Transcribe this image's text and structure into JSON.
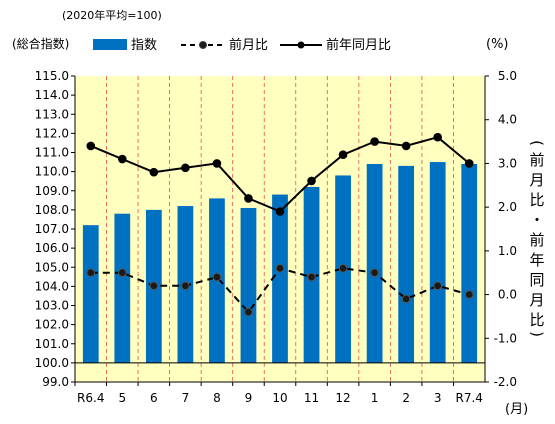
{
  "chart_data": {
    "type": "bar",
    "note": "(2020年平均=100)",
    "ylabel_left": "(総合指数)",
    "ylabel_right_unit": "(%)",
    "ylabel_right_vertical": "前月比・前年同月比",
    "xlabel_unit": "(月)",
    "categories": [
      "R6.4",
      "5",
      "6",
      "7",
      "8",
      "9",
      "10",
      "11",
      "12",
      "1",
      "2",
      "3",
      "R7.4"
    ],
    "left_axis": {
      "ylim": [
        99.0,
        115.0
      ],
      "ticks": [
        "99.0",
        "100.0",
        "101.0",
        "102.0",
        "103.0",
        "104.0",
        "105.0",
        "106.0",
        "107.0",
        "108.0",
        "109.0",
        "110.0",
        "111.0",
        "112.0",
        "113.0",
        "114.0",
        "115.0"
      ]
    },
    "right_axis": {
      "ylim": [
        -2.0,
        5.0
      ],
      "ticks": [
        "-2.0",
        "-1.0",
        "0.0",
        "1.0",
        "2.0",
        "3.0",
        "4.0",
        "5.0"
      ]
    },
    "bar_base": 100.0,
    "series": [
      {
        "name": "指数",
        "kind": "bar",
        "axis": "left",
        "color": "#0070C0",
        "values": [
          107.2,
          107.8,
          108.0,
          108.2,
          108.6,
          108.1,
          108.8,
          109.2,
          109.8,
          110.4,
          110.3,
          110.5,
          110.4
        ]
      },
      {
        "name": "前月比",
        "kind": "dashed-line",
        "axis": "right",
        "color": "#000000",
        "values": [
          0.5,
          0.5,
          0.2,
          0.2,
          0.4,
          -0.4,
          0.6,
          0.4,
          0.6,
          0.5,
          -0.1,
          0.2,
          0.0
        ]
      },
      {
        "name": "前年同月比",
        "kind": "line",
        "axis": "right",
        "color": "#000000",
        "values": [
          3.4,
          3.1,
          2.8,
          2.9,
          3.0,
          2.2,
          1.9,
          2.6,
          3.2,
          3.5,
          3.4,
          3.6,
          3.0
        ]
      }
    ],
    "plot_background": "#FFFFC0",
    "grid": "vertical dashed red",
    "legend_position": "top"
  }
}
